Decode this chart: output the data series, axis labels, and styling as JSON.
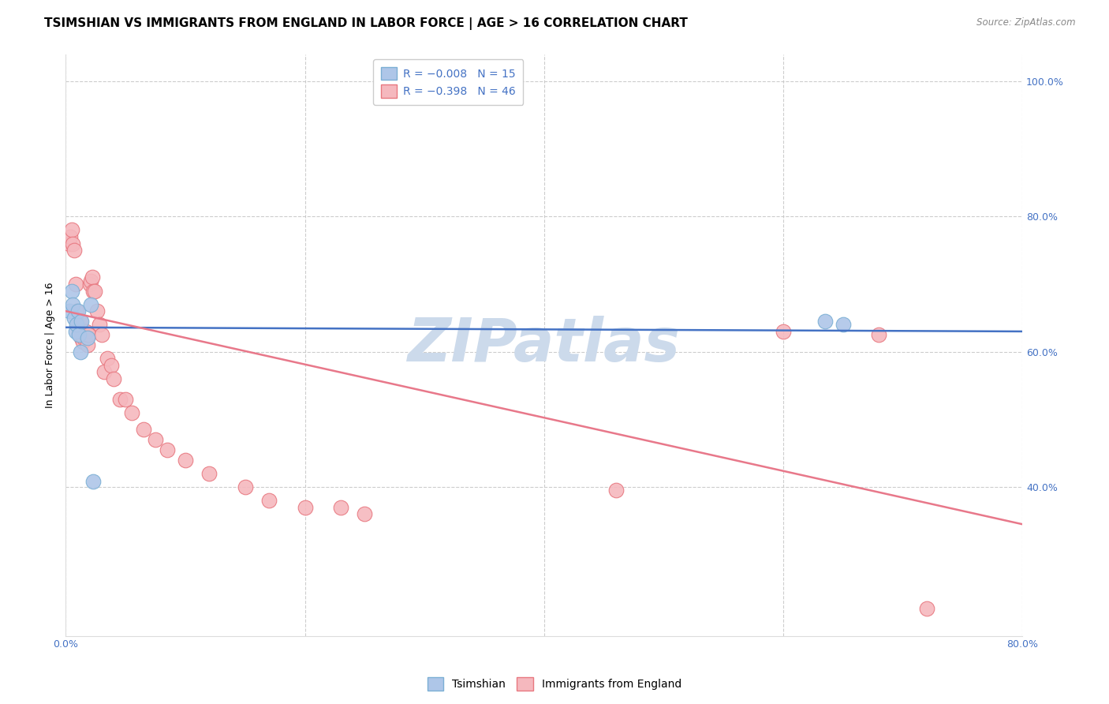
{
  "title": "TSIMSHIAN VS IMMIGRANTS FROM ENGLAND IN LABOR FORCE | AGE > 16 CORRELATION CHART",
  "source": "Source: ZipAtlas.com",
  "ylabel": "In Labor Force | Age > 16",
  "xlim": [
    0.0,
    0.8
  ],
  "ylim": [
    0.18,
    1.04
  ],
  "xticks": [
    0.0,
    0.2,
    0.4,
    0.6,
    0.8
  ],
  "xticklabels": [
    "0.0%",
    "",
    "",
    "",
    "80.0%"
  ],
  "yticks": [
    0.4,
    0.6,
    0.8,
    1.0
  ],
  "yticklabels": [
    "40.0%",
    "60.0%",
    "80.0%",
    "100.0%"
  ],
  "legend_labels": [
    "Tsimshian",
    "Immigrants from England"
  ],
  "blue_color": "#aec6e8",
  "blue_edge": "#7bafd4",
  "pink_color": "#f5b8be",
  "pink_edge": "#e87880",
  "blue_line_color": "#4472c4",
  "pink_line_color": "#e8788a",
  "watermark": "ZIPatlas",
  "watermark_color": "#ccdaeb",
  "tick_color": "#4472c4",
  "title_fontsize": 11,
  "axis_label_fontsize": 9,
  "tick_fontsize": 9,
  "legend_fontsize": 10,
  "tsimshian_x": [
    0.003,
    0.005,
    0.006,
    0.007,
    0.008,
    0.009,
    0.01,
    0.011,
    0.012,
    0.013,
    0.018,
    0.021,
    0.023,
    0.635,
    0.65
  ],
  "tsimshian_y": [
    0.66,
    0.69,
    0.67,
    0.65,
    0.63,
    0.64,
    0.66,
    0.625,
    0.6,
    0.645,
    0.62,
    0.67,
    0.408,
    0.645,
    0.64
  ],
  "england_x": [
    0.003,
    0.004,
    0.005,
    0.006,
    0.007,
    0.008,
    0.009,
    0.01,
    0.011,
    0.012,
    0.013,
    0.014,
    0.015,
    0.016,
    0.017,
    0.018,
    0.019,
    0.02,
    0.021,
    0.022,
    0.023,
    0.024,
    0.026,
    0.028,
    0.03,
    0.032,
    0.035,
    0.038,
    0.04,
    0.045,
    0.05,
    0.055,
    0.065,
    0.075,
    0.085,
    0.1,
    0.12,
    0.15,
    0.17,
    0.2,
    0.23,
    0.25,
    0.46,
    0.6,
    0.68,
    0.72
  ],
  "england_y": [
    0.76,
    0.77,
    0.78,
    0.76,
    0.75,
    0.7,
    0.66,
    0.64,
    0.63,
    0.645,
    0.62,
    0.615,
    0.62,
    0.625,
    0.63,
    0.61,
    0.625,
    0.7,
    0.705,
    0.71,
    0.69,
    0.69,
    0.66,
    0.64,
    0.625,
    0.57,
    0.59,
    0.58,
    0.56,
    0.53,
    0.53,
    0.51,
    0.485,
    0.47,
    0.455,
    0.44,
    0.42,
    0.4,
    0.38,
    0.37,
    0.37,
    0.36,
    0.395,
    0.63,
    0.625,
    0.22
  ],
  "blue_line_start_y": 0.636,
  "blue_line_end_y": 0.63,
  "pink_line_start_y": 0.66,
  "pink_line_end_y": 0.345
}
